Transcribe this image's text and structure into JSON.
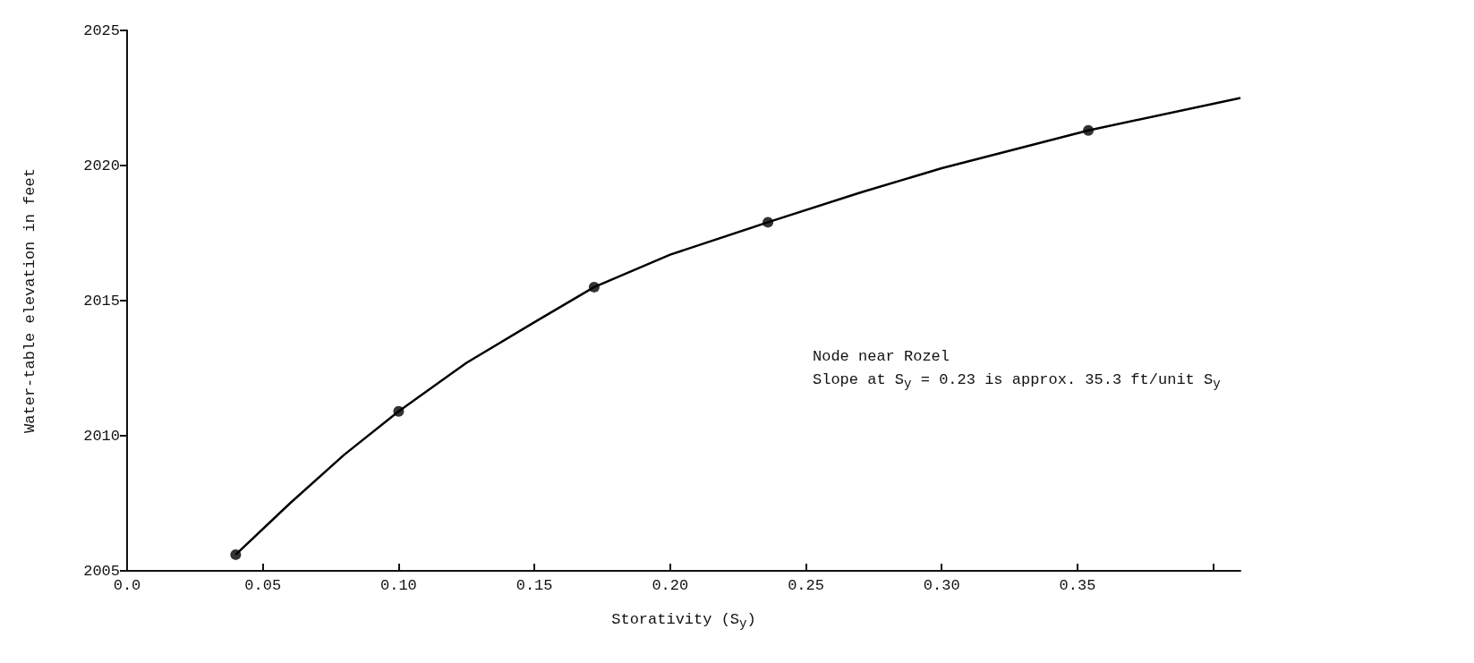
{
  "chart_data": {
    "type": "scatter",
    "xlabel": "Storativity (S$_{y}$)",
    "ylabel": "Water-table elevation in feet",
    "annotations": [
      "Node near Rozel",
      "Slope at S$_{y}$ = 0.23 is approx. 35.3 ft/unit S$_{y}$"
    ],
    "series": [
      {
        "color": "#000000",
        "x": [
          0.04,
          0.1,
          0.172,
          0.236,
          0.354
        ],
        "values": [
          2005.6,
          2010.9,
          2015.5,
          2017.9,
          2021.3
        ]
      },
      {
        "type": "line",
        "color": "#000000",
        "marker": "none",
        "x": [
          0.04,
          0.06,
          0.08,
          0.1,
          0.125,
          0.15,
          0.172,
          0.2,
          0.236,
          0.27,
          0.3,
          0.354,
          0.41
        ],
        "values": [
          2005.6,
          2007.5,
          2009.3,
          2010.9,
          2012.7,
          2014.2,
          2015.5,
          2016.7,
          2017.9,
          2019.0,
          2019.9,
          2021.3,
          2022.5
        ]
      }
    ],
    "marker": "circle",
    "grid": false,
    "xlim": [
      0,
      0.41
    ],
    "xticks": [
      {
        "value": 0,
        "label": "0.0"
      },
      0.05,
      {
        "value": 0.1,
        "label": "0.10"
      },
      0.15,
      {
        "value": 0.2,
        "label": "0.20"
      },
      0.25,
      {
        "value": 0.3,
        "label": "0.30"
      },
      0.35,
      {
        "value": 0.4,
        "label": null
      }
    ],
    "ylim": [
      2005,
      2025
    ],
    "yticks": [
      2005,
      2010,
      2015,
      2020,
      2025
    ]
  }
}
